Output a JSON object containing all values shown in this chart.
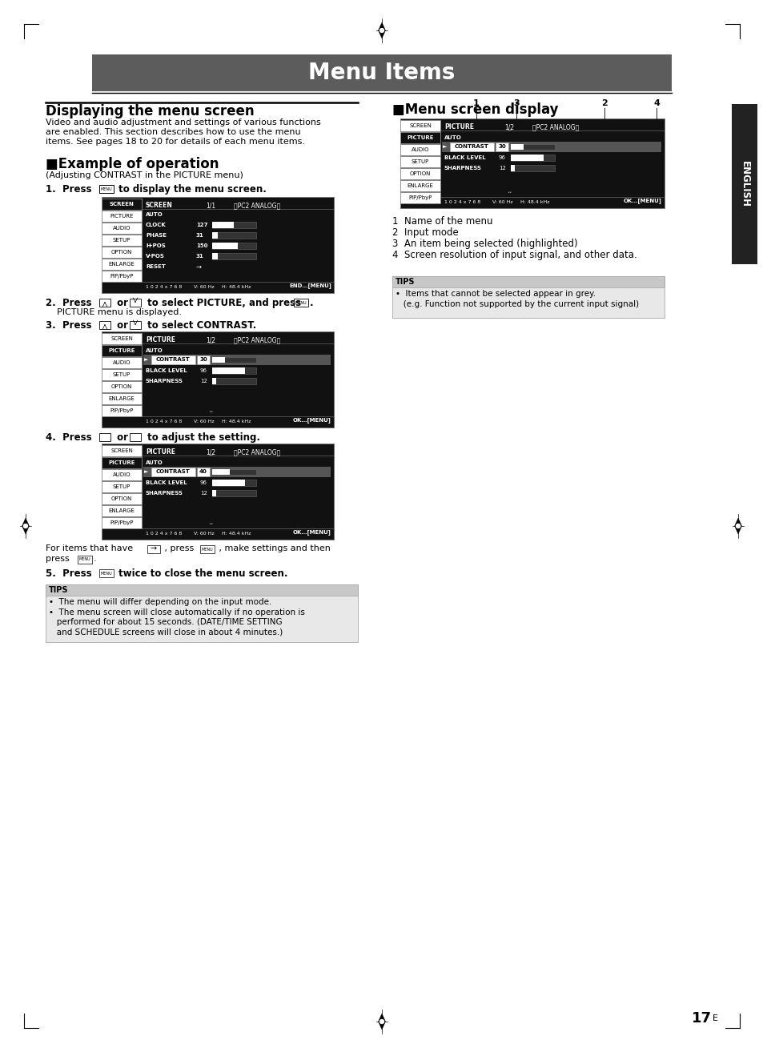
{
  "title": "Menu Items",
  "title_bg": "#5c5c5c",
  "title_fg": "#ffffff",
  "page_bg": "#ffffff",
  "section1_title": "Displaying the menu screen",
  "section1_text1": "Video and audio adjustment and settings of various functions",
  "section1_text2": "are enabled. This section describes how to use the menu",
  "section1_text3": "items. See pages 18 to 20 for details of each menu items.",
  "section2_title": "■Example of operation",
  "section2_sub": "(Adjusting CONTRAST in the PICTURE menu)",
  "step1_bold": "1.  Press ",
  "step1_rest": " to display the menu screen.",
  "step2_line1_bold": "2.  Press ",
  "step2_line1_mid": " or ",
  "step2_line1_end": " to select PICTURE, and press ",
  "step2_line1_dot": ".",
  "step2_line2": "    PICTURE menu is displayed.",
  "step3_bold": "3.  Press ",
  "step3_mid": " or ",
  "step3_end": " to select CONTRAST.",
  "step4_bold": "4.  Press ",
  "step4_mid": " or ",
  "step4_end": " to adjust the setting.",
  "for_items_text1": "For items that have        , press        , make settings and then",
  "for_items_text2": "press        .",
  "step5_bold": "5.  Press ",
  "step5_end": " twice to close the menu screen.",
  "tips_bottom_title": "TIPS",
  "tips_bottom_1": "The menu will differ depending on the input mode.",
  "tips_bottom_2": "The menu screen will close automatically if no operation is",
  "tips_bottom_3": "performed for about 15 seconds. (DATE/TIME SETTING",
  "tips_bottom_4": "and SCHEDULE screens will close in about 4 minutes.)",
  "right_title": "■Menu screen display",
  "annot_1": "1",
  "annot_2": "2",
  "annot_3": "3",
  "annot_4": "4",
  "label_1": "1  Name of the menu",
  "label_2": "2  Input mode",
  "label_3": "3  An item being selected (highlighted)",
  "label_4": "4  Screen resolution of input signal, and other data.",
  "tips_right_title": "TIPS",
  "tips_right_1": "•  Items that cannot be selected appear in grey.",
  "tips_right_2": "   (e.g. Function not supported by the current input signal)",
  "english_label": "ENGLISH",
  "page_number": "17",
  "menu_bg": "#111111",
  "menu_tab_white_bg": "#ffffff",
  "menu_tab_white_fg": "#000000",
  "menu_tab_black_bg": "#111111",
  "menu_tab_black_fg": "#ffffff",
  "menu_fg": "#ffffff",
  "menu_highlight_bg": "#555555",
  "menu_bar_bg": "#333333",
  "menu_bar_fg": "#ffffff",
  "menu_val_box_bg": "#ffffff",
  "menu_val_box_fg": "#000000",
  "tips_bg": "#e8e8e8",
  "tips_header_bg": "#c8c8c8",
  "english_bg": "#222222"
}
